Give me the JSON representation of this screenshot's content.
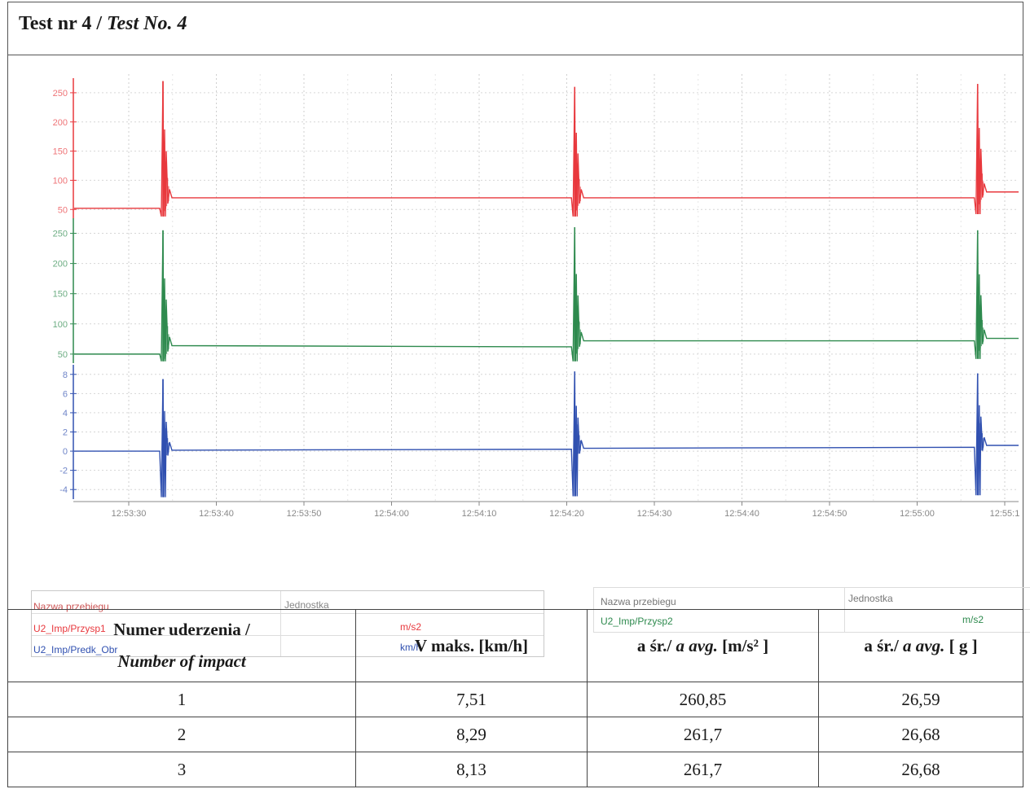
{
  "title": {
    "main": "Test nr 4 / ",
    "italic": "Test No. 4"
  },
  "chart_data": {
    "type": "line",
    "x": [
      "12:53:30",
      "12:53:40",
      "12:53:50",
      "12:54:00",
      "12:54:10",
      "12:54:20",
      "12:54:30",
      "12:54:40",
      "12:54:50",
      "12:55:00",
      "12:55:1"
    ],
    "panels": [
      {
        "series": "U2_Imp/Przysp1",
        "color": "#e8383d",
        "yticks": [
          50,
          100,
          150,
          200,
          250
        ],
        "ylim": [
          35,
          275
        ],
        "baseline_before": [
          52,
          70,
          70
        ],
        "baseline_after": [
          70,
          70,
          80
        ],
        "peaks": [
          {
            "t": "12:53:34",
            "max": 270,
            "min": 38
          },
          {
            "t": "12:54:21",
            "max": 260,
            "min": 38
          },
          {
            "t": "12:55:07",
            "max": 265,
            "min": 42
          }
        ]
      },
      {
        "series": "U2_Imp/Przysp2",
        "color": "#2e8a4e",
        "yticks": [
          50,
          100,
          150,
          200,
          250
        ],
        "ylim": [
          35,
          275
        ],
        "baseline_before": [
          50,
          62,
          72
        ],
        "baseline_after": [
          64,
          72,
          76
        ],
        "peaks": [
          {
            "t": "12:53:34",
            "max": 255,
            "min": 38
          },
          {
            "t": "12:54:21",
            "max": 260,
            "min": 38
          },
          {
            "t": "12:55:07",
            "max": 255,
            "min": 42
          }
        ]
      },
      {
        "series": "U2_Imp/Predk_Obr",
        "color": "#3050b0",
        "yticks": [
          -4,
          -2,
          0,
          2,
          4,
          6,
          8
        ],
        "ylim": [
          -5,
          9
        ],
        "baseline_before": [
          0,
          0.2,
          0.4
        ],
        "baseline_after": [
          0.1,
          0.3,
          0.6
        ],
        "peaks": [
          {
            "t": "12:53:34",
            "max": 7.5,
            "min": -4.8
          },
          {
            "t": "12:54:21",
            "max": 8.3,
            "min": -4.7
          },
          {
            "t": "12:55:07",
            "max": 8.1,
            "min": -4.6
          }
        ]
      }
    ]
  },
  "legend": {
    "left": {
      "header_name": "Nazwa przebiegu",
      "header_unit": "Jednostka",
      "rows": [
        {
          "name": "U2_Imp/Przysp1",
          "unit": "m/s2",
          "color": "#e8383d"
        },
        {
          "name": "U2_Imp/Predk_Obr",
          "unit": "km/h",
          "color": "#3050b0"
        }
      ]
    },
    "right": {
      "header_name": "Nazwa przebiegu",
      "header_unit": "Jednostka",
      "rows": [
        {
          "name": "U2_Imp/Przysp2",
          "unit": "m/s2",
          "color": "#2e8a4e"
        }
      ]
    }
  },
  "table": {
    "headers": {
      "col1_line1": "Numer uderzenia /",
      "col1_line2": "Number of impact",
      "col2": "V maks. [km/h]",
      "col3_a": "a śr./ ",
      "col3_b": "a avg.",
      "col3_c": " [m/s² ]",
      "col4_a": "a śr./ ",
      "col4_b": "a avg.",
      "col4_c": " [ g ]"
    },
    "rows": [
      {
        "n": "1",
        "v": "7,51",
        "a_ms2": "260,85",
        "a_g": "26,59"
      },
      {
        "n": "2",
        "v": "8,29",
        "a_ms2": "261,7",
        "a_g": "26,68"
      },
      {
        "n": "3",
        "v": "8,13",
        "a_ms2": "261,7",
        "a_g": "26,68"
      }
    ]
  }
}
